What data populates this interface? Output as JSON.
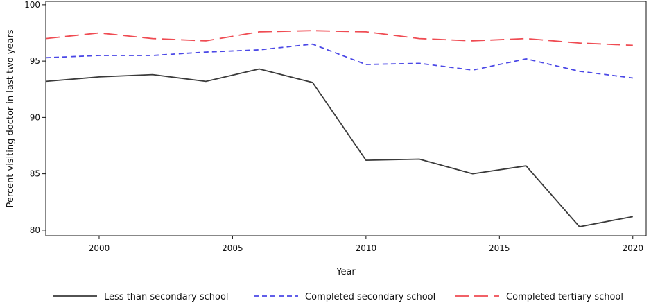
{
  "chart_data": {
    "type": "line",
    "title": "",
    "xlabel": "Year",
    "ylabel": "Percent visiting doctor in last two years",
    "xlim": [
      1998,
      2020.5
    ],
    "ylim": [
      79.5,
      100.3
    ],
    "xticks": [
      2000,
      2005,
      2010,
      2015,
      2020
    ],
    "yticks": [
      80,
      85,
      90,
      95,
      100
    ],
    "grid": false,
    "legend_position": "bottom",
    "x": [
      1998,
      2000,
      2002,
      2004,
      2006,
      2008,
      2010,
      2012,
      2014,
      2016,
      2018,
      2020
    ],
    "series": [
      {
        "name": "Less than secondary school",
        "color": "#3a3a3a",
        "dash": "solid",
        "values": [
          93.2,
          93.6,
          93.8,
          93.2,
          94.3,
          93.1,
          86.2,
          86.3,
          85.0,
          85.7,
          80.3,
          81.2
        ]
      },
      {
        "name": "Completed secondary school",
        "color": "#4b48e6",
        "dash": "short-dash",
        "values": [
          95.3,
          95.5,
          95.5,
          95.8,
          96.0,
          96.5,
          94.7,
          94.8,
          94.2,
          95.2,
          94.1,
          93.5
        ]
      },
      {
        "name": "Completed tertiary school",
        "color": "#ef4b52",
        "dash": "long-dash",
        "values": [
          97.0,
          97.5,
          97.0,
          96.8,
          97.6,
          97.7,
          97.6,
          97.0,
          96.8,
          97.0,
          96.6,
          96.4
        ]
      }
    ]
  }
}
